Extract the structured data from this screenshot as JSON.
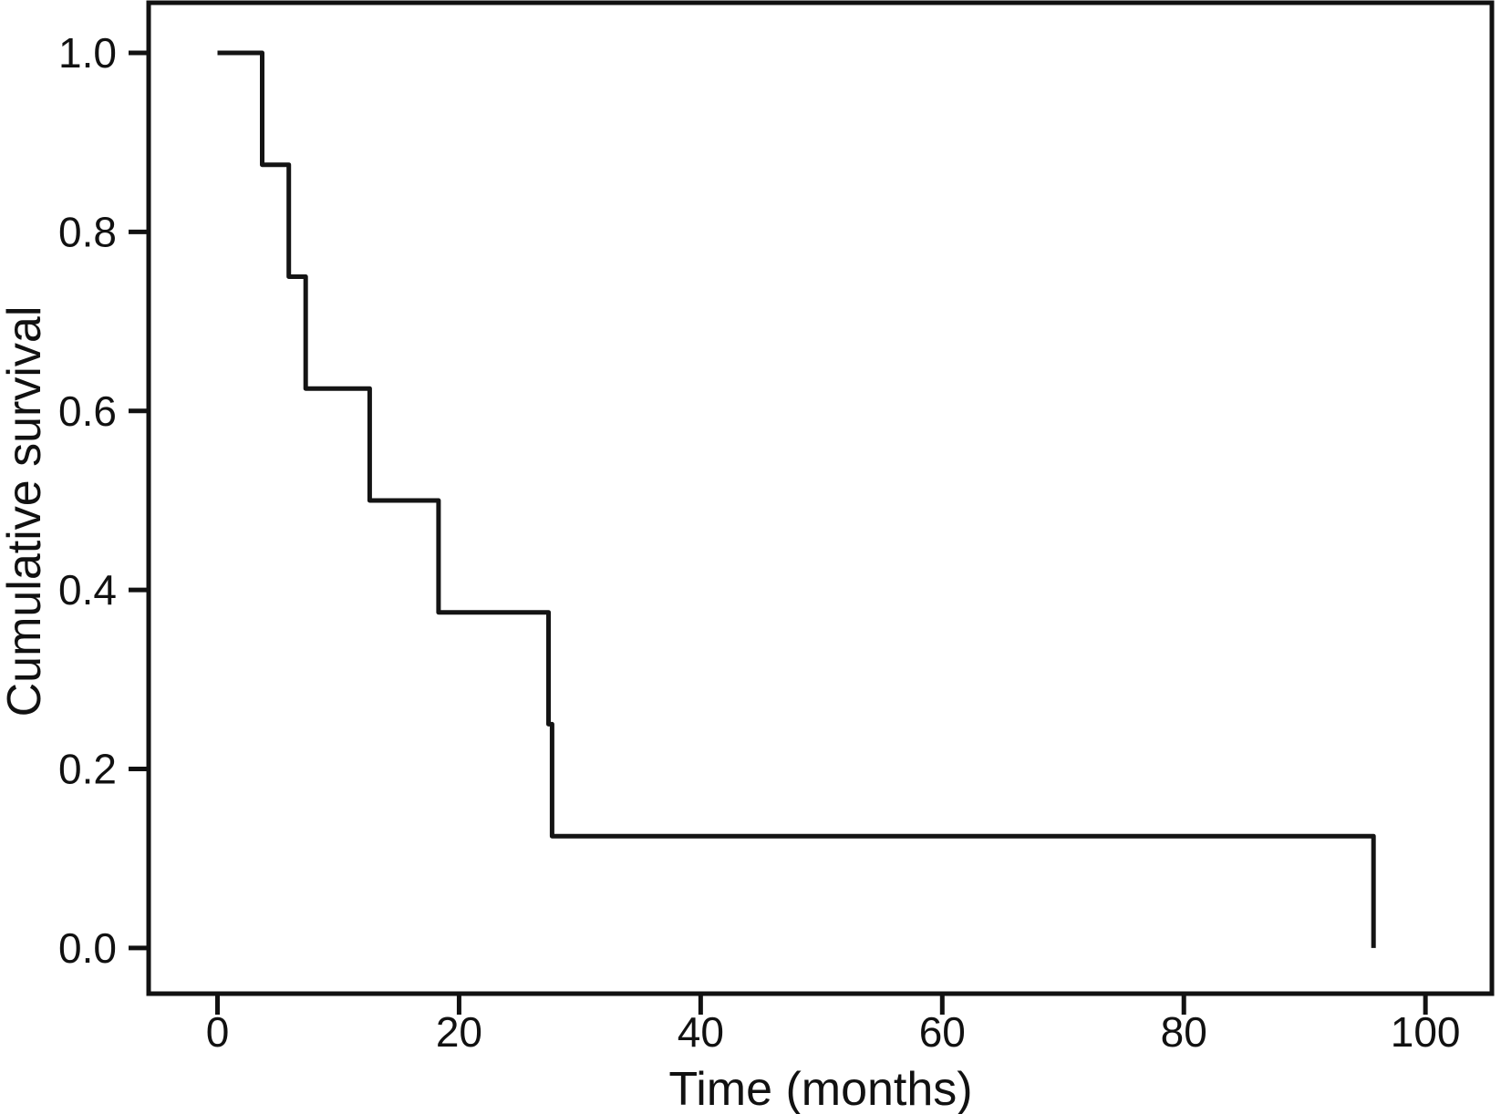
{
  "figure": {
    "background": "#ffffff",
    "line_color": "#111111",
    "curve_color": "#141414",
    "text_color": "#111111"
  },
  "chart_data": {
    "type": "line",
    "subtype": "kaplan-meier-step-curve",
    "title": "",
    "xlabel": "Time (months)",
    "ylabel": "Cumulative survival",
    "xlim": [
      -5.7,
      105.5
    ],
    "ylim": [
      -0.051,
      1.056
    ],
    "grid": false,
    "legend": false,
    "x_ticks": {
      "values": [
        0,
        20,
        40,
        60,
        80,
        100
      ],
      "labels": [
        "0",
        "20",
        "40",
        "60",
        "80",
        "100"
      ]
    },
    "y_ticks": {
      "values": [
        0.0,
        0.2,
        0.4,
        0.6,
        0.8,
        1.0
      ],
      "labels": [
        "0.0",
        "0.2",
        "0.4",
        "0.6",
        "0.8",
        "1.0"
      ]
    },
    "series": [
      {
        "name": "Cumulative survival",
        "color": "#141414",
        "start": [
          0,
          1.0
        ],
        "event_times_months": [
          4,
          6,
          7,
          13,
          18,
          27,
          28,
          96
        ],
        "survival_after_event": [
          0.875,
          0.75,
          0.625,
          0.5,
          0.375,
          0.25,
          0.125,
          0.0
        ],
        "step_points": [
          [
            0,
            1.0
          ],
          [
            3.7,
            1.0
          ],
          [
            3.7,
            0.875
          ],
          [
            5.9,
            0.875
          ],
          [
            5.9,
            0.75
          ],
          [
            7.3,
            0.75
          ],
          [
            7.3,
            0.625
          ],
          [
            12.6,
            0.625
          ],
          [
            12.6,
            0.5
          ],
          [
            18.3,
            0.5
          ],
          [
            18.3,
            0.375
          ],
          [
            27.4,
            0.375
          ],
          [
            27.4,
            0.25
          ],
          [
            27.7,
            0.25
          ],
          [
            27.7,
            0.125
          ],
          [
            95.7,
            0.125
          ],
          [
            95.7,
            0.0
          ]
        ]
      }
    ]
  }
}
